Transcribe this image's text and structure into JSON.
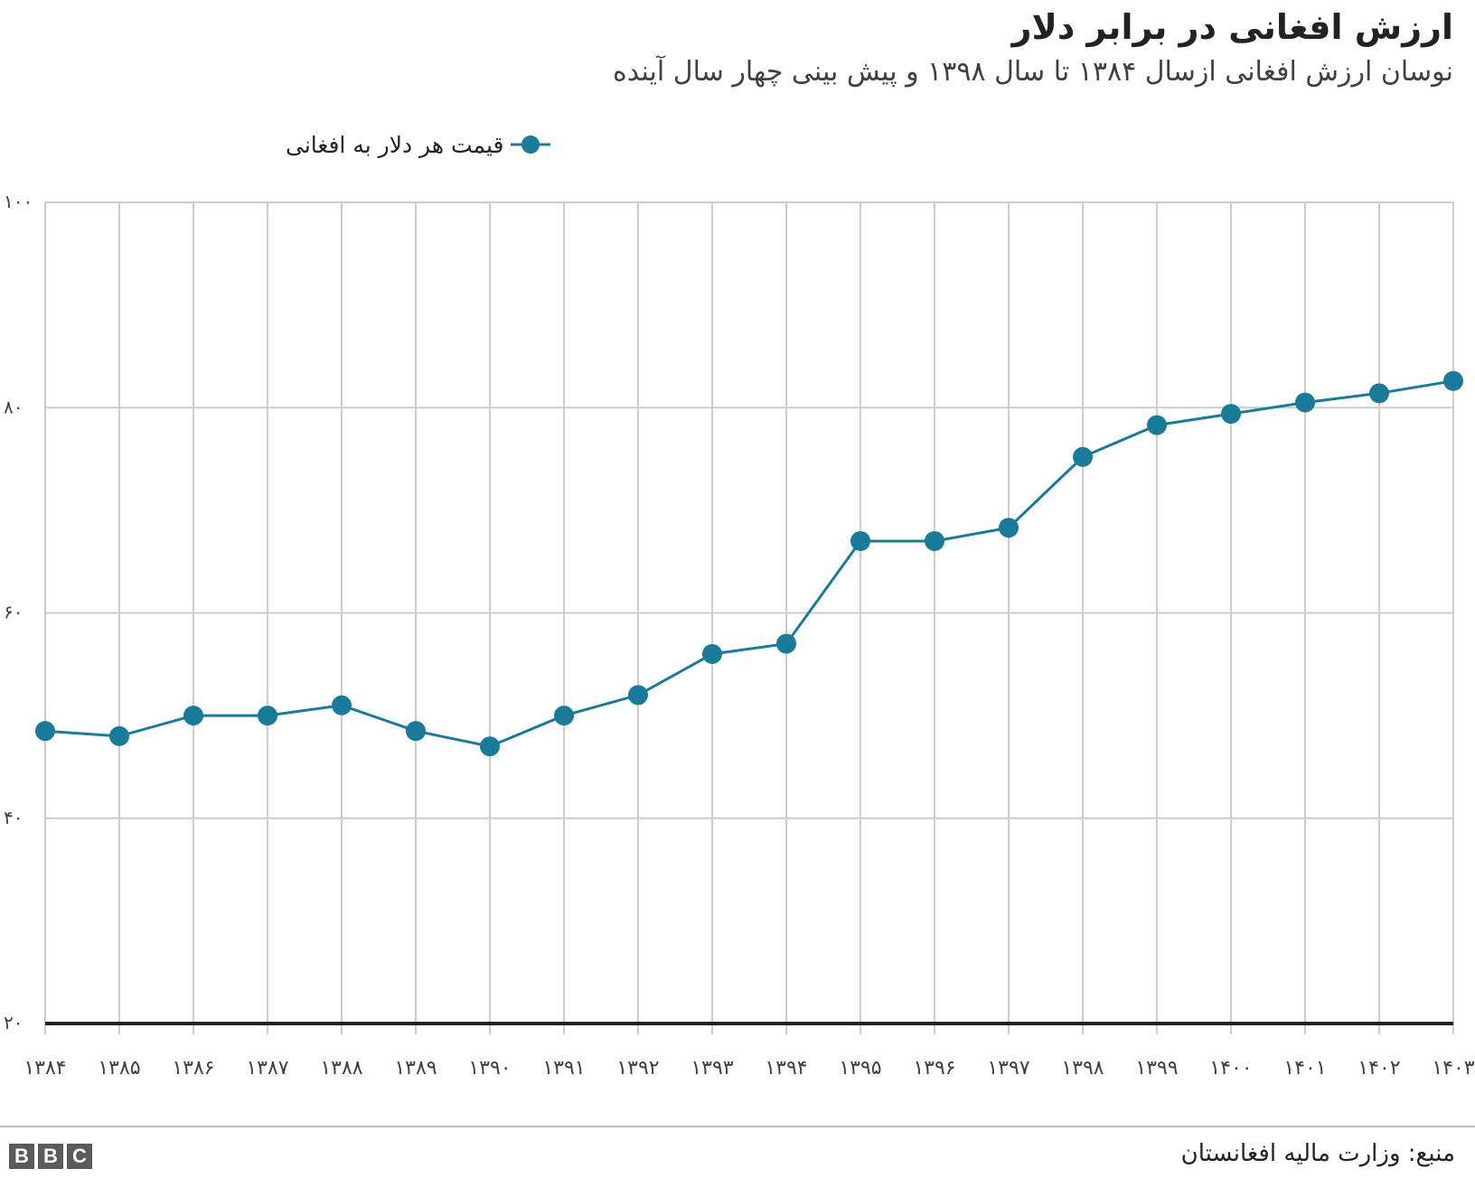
{
  "header": {
    "title": "ارزش افغانی در برابر دلار",
    "subtitle": "نوسان ارزش افغانی ازسال ۱۳۸۴ تا سال ۱۳۹۸ و پیش بینی چهار سال آینده"
  },
  "footer": {
    "source": "منبع: وزارت مالیه افغانستان",
    "logo_letters": [
      "B",
      "B",
      "C"
    ]
  },
  "colors": {
    "series": "#1a7a9a",
    "grid": "#cccccc",
    "axis": "#222222"
  },
  "chart_data": {
    "type": "line",
    "title": "ارزش افغانی در برابر دلار",
    "subtitle": "نوسان ارزش افغانی ازسال ۱۳۸۴ تا سال ۱۳۹۸ و پیش بینی چهار سال آینده",
    "xlabel": "",
    "ylabel": "",
    "x": [
      "۱۳۸۴",
      "۱۳۸۵",
      "۱۳۸۶",
      "۱۳۸۷",
      "۱۳۸۸",
      "۱۳۸۹",
      "۱۳۹۰",
      "۱۳۹۱",
      "۱۳۹۲",
      "۱۳۹۳",
      "۱۳۹۴",
      "۱۳۹۵",
      "۱۳۹۶",
      "۱۳۹۷",
      "۱۳۹۸",
      "۱۳۹۹",
      "۱۴۰۰",
      "۱۴۰۱",
      "۱۴۰۲",
      "۱۴۰۳"
    ],
    "series": [
      {
        "name": "قیمت هر دلار به افغانی",
        "values": [
          48.5,
          48.0,
          50.0,
          50.0,
          51.0,
          48.5,
          47.0,
          50.0,
          52.0,
          56.0,
          57.0,
          67.0,
          67.0,
          68.3,
          75.2,
          78.3,
          79.4,
          80.5,
          81.4,
          82.6
        ]
      }
    ],
    "ylim": [
      20,
      100
    ],
    "yticks": [
      20,
      40,
      60,
      80,
      100
    ],
    "ytick_labels": [
      "۲۰",
      "۴۰",
      "۶۰",
      "۸۰",
      "۱۰۰"
    ],
    "grid": true,
    "legend_position": "top-left"
  }
}
